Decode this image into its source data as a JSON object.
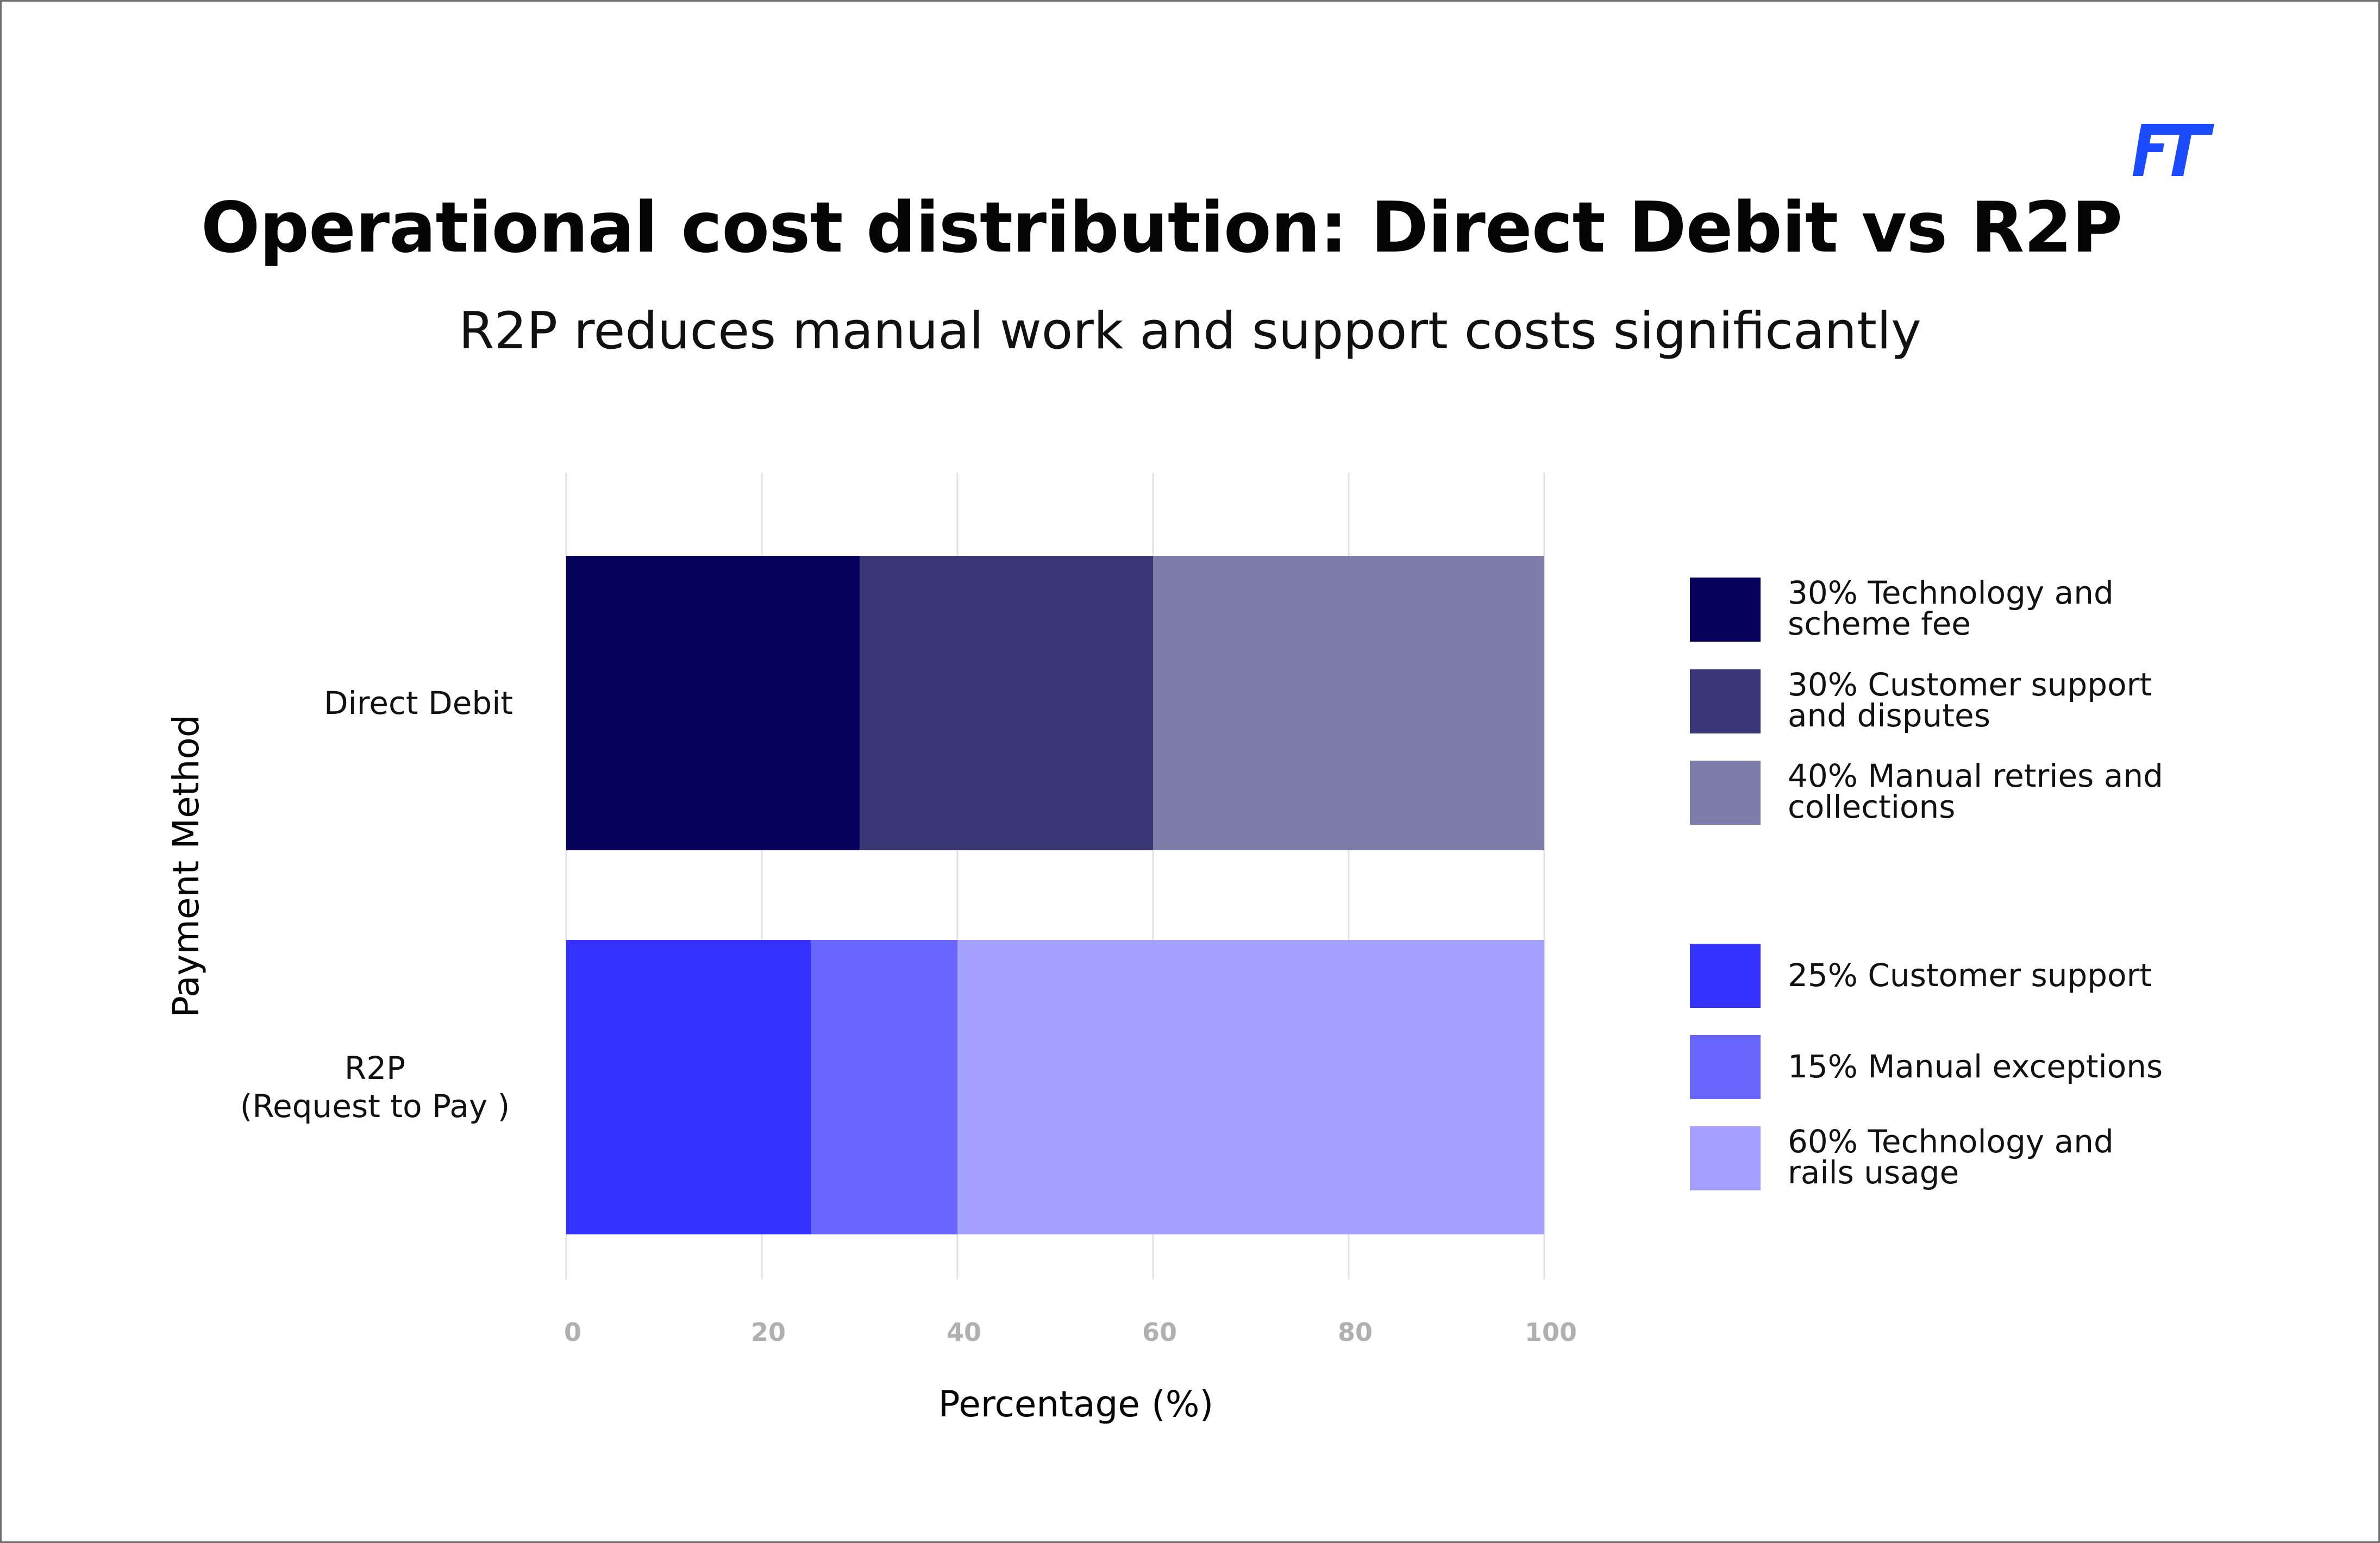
{
  "header": {
    "title": "Operational cost distribution: Direct Debit vs R2P",
    "subtitle": "R2P reduces manual work and support costs significantly",
    "logo_text": "FT",
    "logo_color": "#1a4bff"
  },
  "chart_data": {
    "type": "bar",
    "orientation": "horizontal",
    "stacked": true,
    "xlabel": "Percentage (%)",
    "ylabel": "Payment Method",
    "xlim": [
      0,
      100
    ],
    "xticks": [
      "0",
      "20",
      "40",
      "60",
      "80",
      "100"
    ],
    "grid": true,
    "legend_placement": "right",
    "categories": [
      {
        "name": "Direct Debit",
        "label_lines": [
          "Direct Debit"
        ],
        "segments": [
          {
            "legend": "30% Technology and scheme fee",
            "legend_lines": [
              "30% Technology and",
              "scheme fee"
            ],
            "value": 30,
            "color": "#05005a"
          },
          {
            "legend": "30% Customer support and disputes",
            "legend_lines": [
              "30% Customer support",
              "and disputes"
            ],
            "value": 30,
            "color": "#3a3777"
          },
          {
            "legend": "40% Manual retries and collections",
            "legend_lines": [
              "40% Manual retries and",
              "collections"
            ],
            "value": 40,
            "color": "#7d7ba8"
          }
        ]
      },
      {
        "name": "R2P (Request to Pay )",
        "label_lines": [
          "R2P",
          "(Request to Pay )"
        ],
        "segments": [
          {
            "legend": "25% Customer support",
            "legend_lines": [
              "25% Customer support"
            ],
            "value": 25,
            "color": "#3733ff"
          },
          {
            "legend": "15% Manual exceptions",
            "legend_lines": [
              "15% Manual exceptions"
            ],
            "value": 15,
            "color": "#6966ff"
          },
          {
            "legend": "60% Technology and rails usage",
            "legend_lines": [
              "60% Technology and",
              "rails usage"
            ],
            "value": 60,
            "color": "#a3a0ff"
          }
        ]
      }
    ]
  }
}
